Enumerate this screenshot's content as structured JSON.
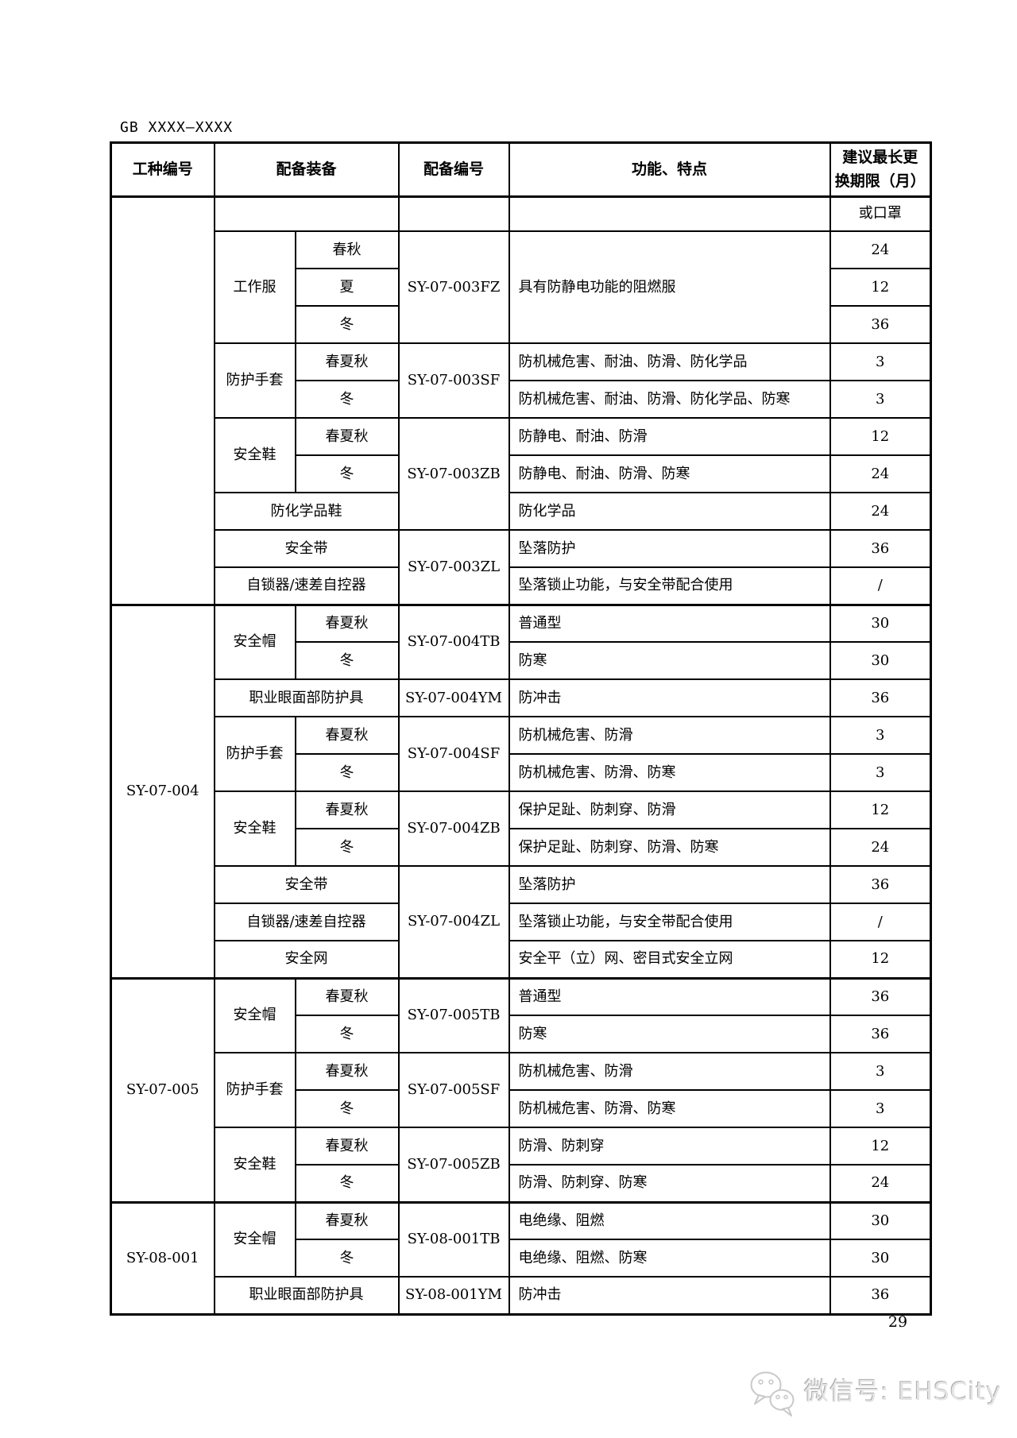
{
  "header": {
    "standard_number": "GB XXXX—XXXX"
  },
  "table": {
    "header": {
      "cells": [
        {
          "t": "工种编号",
          "c": "h"
        },
        {
          "t": "配备装备",
          "c": "h",
          "cs": 2
        },
        {
          "t": "配备编号",
          "c": "h"
        },
        {
          "t": "功能、特点",
          "c": "h"
        },
        {
          "t": "建议最长更\n换期限（月）",
          "c": "h"
        }
      ]
    },
    "rows": [
      {
        "cells": [
          {
            "t": "",
            "c": "group",
            "rs": 11
          },
          {
            "t": "",
            "c": "equip",
            "cs": 2
          },
          {
            "t": "",
            "c": "code"
          },
          {
            "t": "",
            "c": "fn"
          },
          {
            "t": "或口罩",
            "c": "val"
          }
        ]
      },
      {
        "cells": [
          {
            "t": "工作服",
            "c": "equip",
            "rs": 3
          },
          {
            "t": "春秋",
            "c": "season"
          },
          {
            "t": "SY-07-003FZ",
            "c": "code",
            "rs": 3
          },
          {
            "t": "具有防静电功能的阻燃服",
            "c": "fn",
            "rs": 3
          },
          {
            "t": "24",
            "c": "val"
          }
        ]
      },
      {
        "cells": [
          {
            "t": "夏",
            "c": "season"
          },
          {
            "t": "12",
            "c": "val"
          }
        ]
      },
      {
        "cells": [
          {
            "t": "冬",
            "c": "season"
          },
          {
            "t": "36",
            "c": "val"
          }
        ]
      },
      {
        "cells": [
          {
            "t": "防护手套",
            "c": "equip",
            "rs": 2
          },
          {
            "t": "春夏秋",
            "c": "season"
          },
          {
            "t": "SY-07-003SF",
            "c": "code",
            "rs": 2
          },
          {
            "t": "防机械危害、耐油、防滑、防化学品",
            "c": "fn"
          },
          {
            "t": "3",
            "c": "val"
          }
        ]
      },
      {
        "cells": [
          {
            "t": "冬",
            "c": "season"
          },
          {
            "t": "防机械危害、耐油、防滑、防化学品、防寒",
            "c": "fn"
          },
          {
            "t": "3",
            "c": "val"
          }
        ]
      },
      {
        "cells": [
          {
            "t": "安全鞋",
            "c": "equip",
            "rs": 2
          },
          {
            "t": "春夏秋",
            "c": "season"
          },
          {
            "t": "SY-07-003ZB",
            "c": "code",
            "rs": 3
          },
          {
            "t": "防静电、耐油、防滑",
            "c": "fn"
          },
          {
            "t": "12",
            "c": "val"
          }
        ]
      },
      {
        "cells": [
          {
            "t": "冬",
            "c": "season"
          },
          {
            "t": "防静电、耐油、防滑、防寒",
            "c": "fn"
          },
          {
            "t": "24",
            "c": "val"
          }
        ]
      },
      {
        "cells": [
          {
            "t": "防化学品鞋",
            "c": "equip",
            "cs": 2
          },
          {
            "t": "防化学品",
            "c": "fn"
          },
          {
            "t": "24",
            "c": "val"
          }
        ]
      },
      {
        "cells": [
          {
            "t": "安全带",
            "c": "equip",
            "cs": 2
          },
          {
            "t": "SY-07-003ZL",
            "c": "code",
            "rs": 2
          },
          {
            "t": "坠落防护",
            "c": "fn"
          },
          {
            "t": "36",
            "c": "val"
          }
        ]
      },
      {
        "cells": [
          {
            "t": "自锁器/速差自控器",
            "c": "equip",
            "cs": 2
          },
          {
            "t": "坠落锁止功能，与安全带配合使用",
            "c": "fn"
          },
          {
            "t": "/",
            "c": "val"
          }
        ]
      },
      {
        "g": true,
        "cells": [
          {
            "t": "SY-07-004",
            "c": "group",
            "rs": 10
          },
          {
            "t": "安全帽",
            "c": "equip",
            "rs": 2
          },
          {
            "t": "春夏秋",
            "c": "season"
          },
          {
            "t": "SY-07-004TB",
            "c": "code",
            "rs": 2
          },
          {
            "t": "普通型",
            "c": "fn"
          },
          {
            "t": "30",
            "c": "val"
          }
        ]
      },
      {
        "cells": [
          {
            "t": "冬",
            "c": "season"
          },
          {
            "t": "防寒",
            "c": "fn"
          },
          {
            "t": "30",
            "c": "val"
          }
        ]
      },
      {
        "cells": [
          {
            "t": "职业眼面部防护具",
            "c": "equip",
            "cs": 2
          },
          {
            "t": "SY-07-004YM",
            "c": "code"
          },
          {
            "t": "防冲击",
            "c": "fn"
          },
          {
            "t": "36",
            "c": "val"
          }
        ]
      },
      {
        "cells": [
          {
            "t": "防护手套",
            "c": "equip",
            "rs": 2
          },
          {
            "t": "春夏秋",
            "c": "season"
          },
          {
            "t": "SY-07-004SF",
            "c": "code",
            "rs": 2
          },
          {
            "t": "防机械危害、防滑",
            "c": "fn"
          },
          {
            "t": "3",
            "c": "val"
          }
        ]
      },
      {
        "cells": [
          {
            "t": "冬",
            "c": "season"
          },
          {
            "t": "防机械危害、防滑、防寒",
            "c": "fn"
          },
          {
            "t": "3",
            "c": "val"
          }
        ]
      },
      {
        "cells": [
          {
            "t": "安全鞋",
            "c": "equip",
            "rs": 2
          },
          {
            "t": "春夏秋",
            "c": "season"
          },
          {
            "t": "SY-07-004ZB",
            "c": "code",
            "rs": 2
          },
          {
            "t": "保护足趾、防刺穿、防滑",
            "c": "fn"
          },
          {
            "t": "12",
            "c": "val"
          }
        ]
      },
      {
        "cells": [
          {
            "t": "冬",
            "c": "season"
          },
          {
            "t": "保护足趾、防刺穿、防滑、防寒",
            "c": "fn"
          },
          {
            "t": "24",
            "c": "val"
          }
        ]
      },
      {
        "cells": [
          {
            "t": "安全带",
            "c": "equip",
            "cs": 2
          },
          {
            "t": "SY-07-004ZL",
            "c": "code",
            "rs": 3
          },
          {
            "t": "坠落防护",
            "c": "fn"
          },
          {
            "t": "36",
            "c": "val"
          }
        ]
      },
      {
        "cells": [
          {
            "t": "自锁器/速差自控器",
            "c": "equip",
            "cs": 2
          },
          {
            "t": "坠落锁止功能，与安全带配合使用",
            "c": "fn"
          },
          {
            "t": "/",
            "c": "val"
          }
        ]
      },
      {
        "cells": [
          {
            "t": "安全网",
            "c": "equip",
            "cs": 2
          },
          {
            "t": "安全平（立）网、密目式安全立网",
            "c": "fn"
          },
          {
            "t": "12",
            "c": "val"
          }
        ]
      },
      {
        "g": true,
        "cells": [
          {
            "t": "SY-07-005",
            "c": "group",
            "rs": 6
          },
          {
            "t": "安全帽",
            "c": "equip",
            "rs": 2
          },
          {
            "t": "春夏秋",
            "c": "season"
          },
          {
            "t": "SY-07-005TB",
            "c": "code",
            "rs": 2
          },
          {
            "t": "普通型",
            "c": "fn"
          },
          {
            "t": "36",
            "c": "val"
          }
        ]
      },
      {
        "cells": [
          {
            "t": "冬",
            "c": "season"
          },
          {
            "t": "防寒",
            "c": "fn"
          },
          {
            "t": "36",
            "c": "val"
          }
        ]
      },
      {
        "cells": [
          {
            "t": "防护手套",
            "c": "equip",
            "rs": 2
          },
          {
            "t": "春夏秋",
            "c": "season"
          },
          {
            "t": "SY-07-005SF",
            "c": "code",
            "rs": 2
          },
          {
            "t": "防机械危害、防滑",
            "c": "fn"
          },
          {
            "t": "3",
            "c": "val"
          }
        ]
      },
      {
        "cells": [
          {
            "t": "冬",
            "c": "season"
          },
          {
            "t": "防机械危害、防滑、防寒",
            "c": "fn"
          },
          {
            "t": "3",
            "c": "val"
          }
        ]
      },
      {
        "cells": [
          {
            "t": "安全鞋",
            "c": "equip",
            "rs": 2
          },
          {
            "t": "春夏秋",
            "c": "season"
          },
          {
            "t": "SY-07-005ZB",
            "c": "code",
            "rs": 2
          },
          {
            "t": "防滑、防刺穿",
            "c": "fn"
          },
          {
            "t": "12",
            "c": "val"
          }
        ]
      },
      {
        "cells": [
          {
            "t": "冬",
            "c": "season"
          },
          {
            "t": "防滑、防刺穿、防寒",
            "c": "fn"
          },
          {
            "t": "24",
            "c": "val"
          }
        ]
      },
      {
        "g": true,
        "cells": [
          {
            "t": "SY-08-001",
            "c": "group",
            "rs": 3
          },
          {
            "t": "安全帽",
            "c": "equip",
            "rs": 2
          },
          {
            "t": "春夏秋",
            "c": "season"
          },
          {
            "t": "SY-08-001TB",
            "c": "code",
            "rs": 2
          },
          {
            "t": "电绝缘、阻燃",
            "c": "fn"
          },
          {
            "t": "30",
            "c": "val"
          }
        ]
      },
      {
        "cells": [
          {
            "t": "冬",
            "c": "season"
          },
          {
            "t": "电绝缘、阻燃、防寒",
            "c": "fn"
          },
          {
            "t": "30",
            "c": "val"
          }
        ]
      },
      {
        "cells": [
          {
            "t": "职业眼面部防护具",
            "c": "equip",
            "cs": 2
          },
          {
            "t": "SY-08-001YM",
            "c": "code"
          },
          {
            "t": "防冲击",
            "c": "fn"
          },
          {
            "t": "36",
            "c": "val"
          }
        ]
      }
    ]
  },
  "footer": {
    "page_number": "29",
    "watermark_text": "微信号: EHSCity",
    "wechat_icon": "wechat-bubbles",
    "watermark_color": "#d9d9d9"
  }
}
